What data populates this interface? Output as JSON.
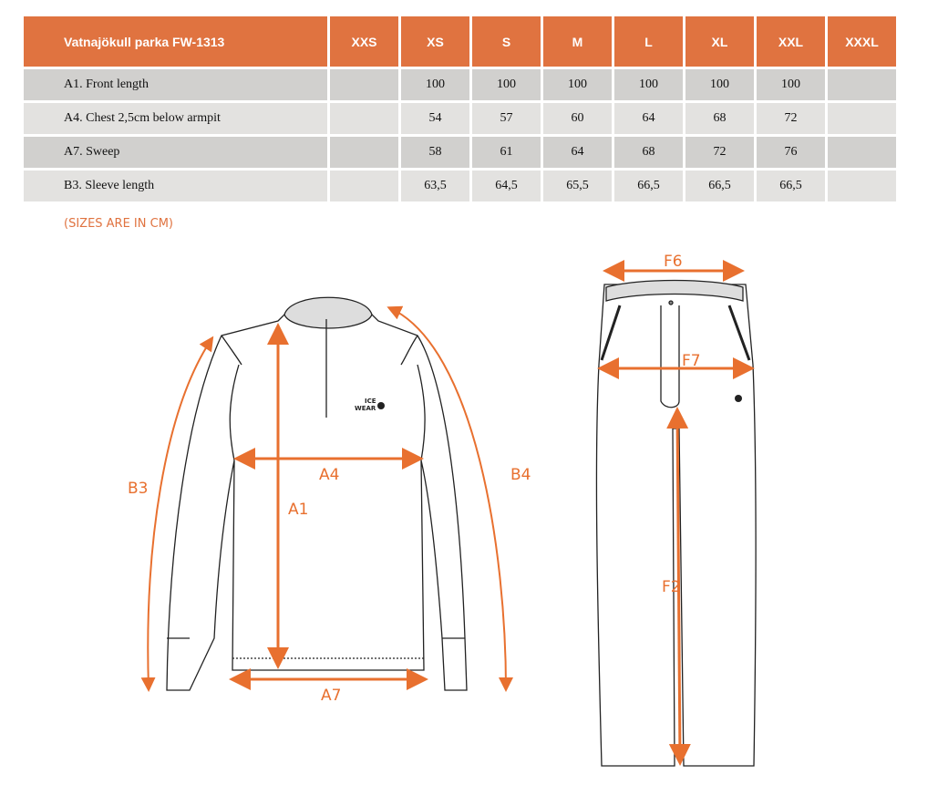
{
  "table": {
    "title": "Vatnajökull parka FW-1313",
    "sizes": [
      "XXS",
      "XS",
      "S",
      "M",
      "L",
      "XL",
      "XXL",
      "XXXL"
    ],
    "rows": [
      {
        "label": "A1. Front length",
        "values": [
          "",
          "100",
          "100",
          "100",
          "100",
          "100",
          "100",
          ""
        ]
      },
      {
        "label": "A4. Chest 2,5cm below armpit",
        "values": [
          "",
          "54",
          "57",
          "60",
          "64",
          "68",
          "72",
          ""
        ]
      },
      {
        "label": "A7. Sweep",
        "values": [
          "",
          "58",
          "61",
          "64",
          "68",
          "72",
          "76",
          ""
        ]
      },
      {
        "label": "B3. Sleeve length",
        "values": [
          "",
          "63,5",
          "64,5",
          "65,5",
          "66,5",
          "66,5",
          "66,5",
          ""
        ]
      }
    ]
  },
  "note": "(SIZES ARE IN CM)",
  "jacket_labels": {
    "b3": "B3",
    "a4": "A4",
    "a1": "A1",
    "b4": "B4",
    "a7": "A7"
  },
  "pants_labels": {
    "f6": "F6",
    "f7": "F7",
    "f2": "F2"
  },
  "logo": "ICE WEAR",
  "colors": {
    "header": "#e07340",
    "arrow": "#e8702f",
    "row_dark": "#d1d0ce",
    "row_light": "#e3e2e0"
  }
}
